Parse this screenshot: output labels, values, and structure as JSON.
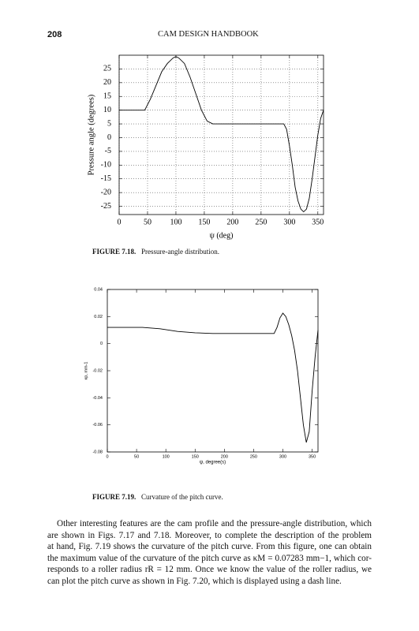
{
  "header": {
    "page_number": "208",
    "running_title": "CAM DESIGN HANDBOOK"
  },
  "chart_data": [
    {
      "type": "line",
      "x_label": "ψ (deg)",
      "y_label": "Pressure angle (degrees)",
      "x": [
        0,
        20,
        40,
        45,
        55,
        65,
        75,
        85,
        95,
        100,
        105,
        115,
        125,
        135,
        145,
        155,
        165,
        180,
        200,
        220,
        240,
        260,
        280,
        290,
        295,
        300,
        305,
        310,
        315,
        320,
        325,
        330,
        335,
        340,
        345,
        350,
        355,
        360
      ],
      "values": [
        10,
        10,
        10,
        10,
        14,
        19,
        24,
        27,
        29,
        29.5,
        29,
        27,
        22,
        16,
        10,
        6,
        5,
        5,
        5,
        5,
        5,
        5,
        5,
        5,
        3,
        -3,
        -10,
        -18,
        -23,
        -26,
        -27,
        -26,
        -22,
        -15,
        -7,
        1,
        7,
        10
      ],
      "color": "#000000",
      "xlim": [
        0,
        360
      ],
      "ylim": [
        -28,
        30
      ],
      "xticks": [
        0,
        50,
        100,
        150,
        200,
        250,
        300,
        350
      ],
      "yticks": [
        -25,
        -20,
        -15,
        -10,
        -5,
        0,
        5,
        10,
        15,
        20,
        25
      ],
      "grid": true
    },
    {
      "type": "line",
      "x_label": "ψ, degree(s)",
      "y_label": "κp, mm-1",
      "x": [
        0,
        30,
        60,
        90,
        120,
        150,
        180,
        210,
        240,
        270,
        285,
        290,
        295,
        300,
        305,
        310,
        315,
        320,
        325,
        330,
        335,
        340,
        345,
        350,
        355,
        360
      ],
      "values": [
        0.012,
        0.012,
        0.012,
        0.011,
        0.009,
        0.008,
        0.0075,
        0.0075,
        0.0075,
        0.0075,
        0.0075,
        0.012,
        0.019,
        0.0225,
        0.02,
        0.014,
        0.006,
        -0.005,
        -0.02,
        -0.04,
        -0.06,
        -0.073,
        -0.065,
        -0.035,
        -0.01,
        0.01
      ],
      "color": "#000000",
      "xlim": [
        0,
        360
      ],
      "ylim": [
        -0.08,
        0.04
      ],
      "xticks": [
        0,
        50,
        100,
        150,
        200,
        250,
        300,
        350
      ],
      "yticks": [
        -0.08,
        -0.06,
        -0.04,
        -0.02,
        0,
        0.02,
        0.04
      ],
      "grid": false
    }
  ],
  "captions": [
    {
      "label": "FIGURE 7.18.",
      "text": "Pressure-angle distribution."
    },
    {
      "label": "FIGURE 7.19.",
      "text": "Curvature of the pitch curve."
    }
  ],
  "body": [
    "Other interesting features are the cam profile and the pressure-angle distribution, which",
    "are shown in Figs. 7.17 and 7.18. Moreover, to complete the description of the problem",
    "at hand, Fig. 7.19 shows the curvature of the pitch curve. From this figure, one can obtain",
    "the maximum value of the curvature of the pitch curve as κM = 0.07283 mm−1, which cor-",
    "responds to a roller radius rR = 12 mm. Once we know the value of the roller radius, we",
    "can plot the pitch curve as shown in Fig. 7.20, which is displayed using a dash line."
  ]
}
